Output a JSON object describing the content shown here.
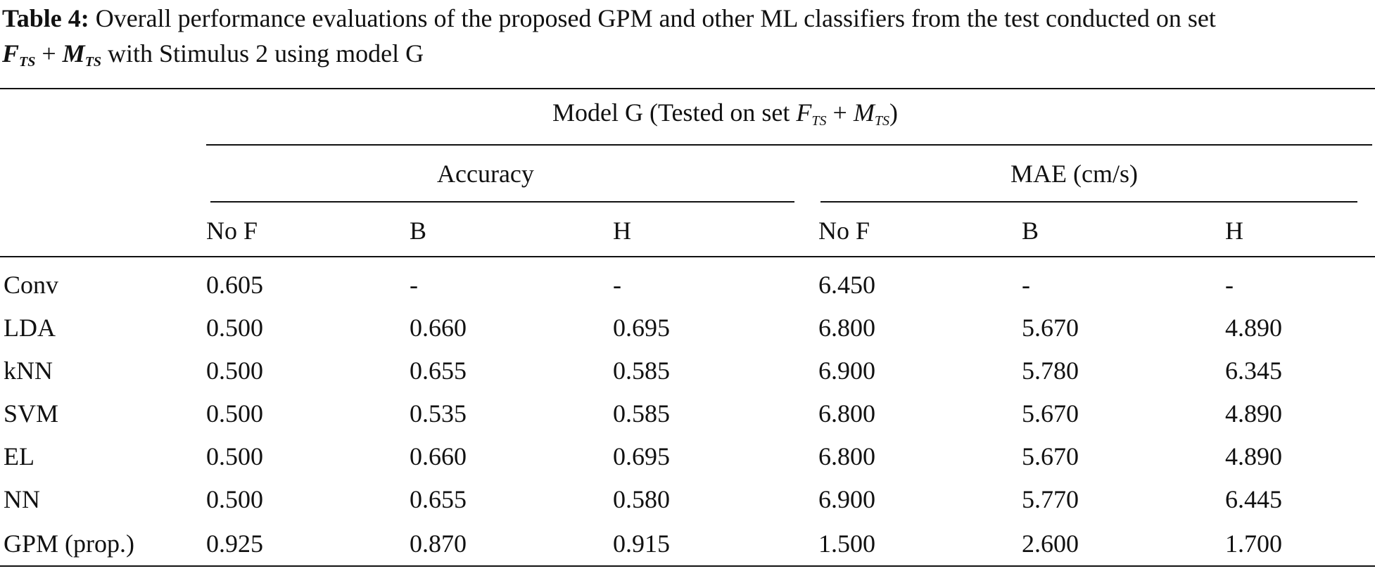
{
  "caption": {
    "label": "Table 4:",
    "text_before": "Overall performance evaluations of the proposed GPM and other ML classifiers from the test conducted on set",
    "math_f": "F",
    "math_f_sub": "TS",
    "math_plus": "+",
    "math_m": "M",
    "math_m_sub": "TS",
    "text_after": "with Stimulus 2 using model G"
  },
  "table": {
    "group_header": {
      "text_before": "Model G (Tested on set",
      "math_f": "F",
      "math_f_sub": "TS",
      "math_plus": "+",
      "math_m": "M",
      "math_m_sub": "TS",
      "text_after": ")"
    },
    "subgroups": [
      "Accuracy",
      "MAE (cm/s)"
    ],
    "columns": [
      "No F",
      "B",
      "H",
      "No F",
      "B",
      "H"
    ],
    "rows": [
      [
        "Conv",
        "0.605",
        "-",
        "-",
        "6.450",
        "-",
        "-"
      ],
      [
        "LDA",
        "0.500",
        "0.660",
        "0.695",
        "6.800",
        "5.670",
        "4.890"
      ],
      [
        "kNN",
        "0.500",
        "0.655",
        "0.585",
        "6.900",
        "5.780",
        "6.345"
      ],
      [
        "SVM",
        "0.500",
        "0.535",
        "0.585",
        "6.800",
        "5.670",
        "4.890"
      ],
      [
        "EL",
        "0.500",
        "0.660",
        "0.695",
        "6.800",
        "5.670",
        "4.890"
      ],
      [
        "NN",
        "0.500",
        "0.655",
        "0.580",
        "6.900",
        "5.770",
        "6.445"
      ],
      [
        "GPM (prop.)",
        "0.925",
        "0.870",
        "0.915",
        "1.500",
        "2.600",
        "1.700"
      ]
    ]
  }
}
